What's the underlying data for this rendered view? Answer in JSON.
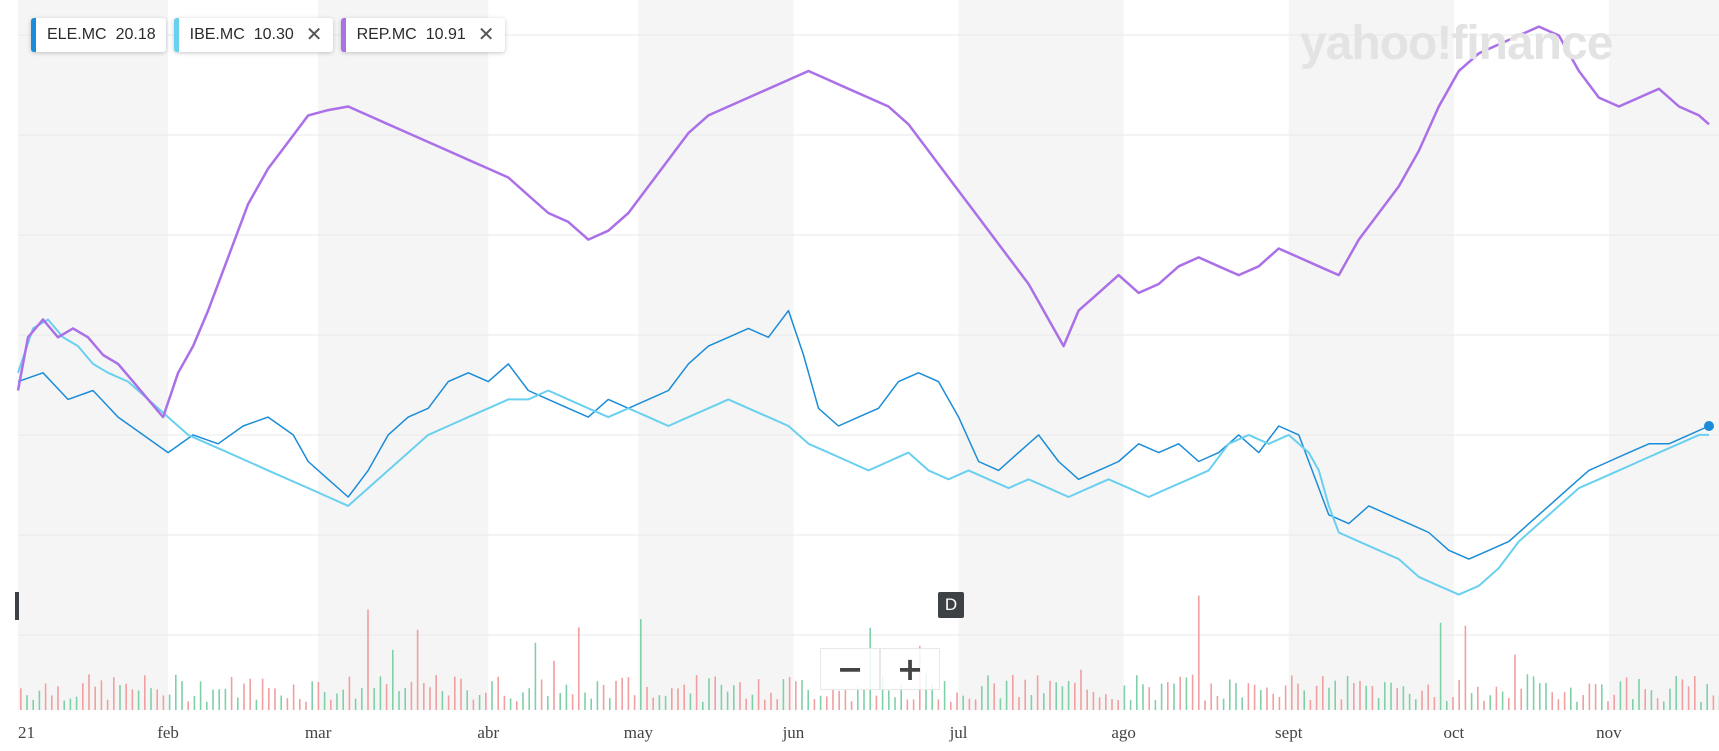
{
  "legend": [
    {
      "symbol": "ELE.MC",
      "value": "20.18",
      "color": "#1a8cd8",
      "closable": false
    },
    {
      "symbol": "IBE.MC",
      "value": "10.30",
      "color": "#6ad0f0",
      "closable": true
    },
    {
      "symbol": "REP.MC",
      "value": "10.91",
      "color": "#ab6fe8",
      "closable": true
    }
  ],
  "watermark": "yahoo!finance",
  "event_marker": "D",
  "zoom": {
    "minus": "−",
    "plus": "+"
  },
  "chart_data": {
    "type": "line",
    "xlabel": "",
    "ylabel": "",
    "x_ticks": [
      "21",
      "feb",
      "mar",
      "abr",
      "may",
      "jun",
      "jul",
      "ago",
      "sept",
      "oct",
      "nov"
    ],
    "x_tick_days": [
      0,
      30,
      60,
      94,
      124,
      155,
      188,
      221,
      254,
      287,
      318
    ],
    "x_range_days": [
      0,
      340
    ],
    "y_unit": "relative % change (scale not printed)",
    "y_range": [
      -18,
      22
    ],
    "series": [
      {
        "name": "ELE.MC",
        "color": "#1a8cd8",
        "stroke": 1.5,
        "points": [
          [
            0,
            0.5
          ],
          [
            5,
            1.0
          ],
          [
            10,
            -0.5
          ],
          [
            15,
            0.0
          ],
          [
            20,
            -1.5
          ],
          [
            25,
            -2.5
          ],
          [
            30,
            -3.5
          ],
          [
            35,
            -2.5
          ],
          [
            40,
            -3.0
          ],
          [
            45,
            -2.0
          ],
          [
            50,
            -1.5
          ],
          [
            55,
            -2.5
          ],
          [
            58,
            -4.0
          ],
          [
            62,
            -5.0
          ],
          [
            66,
            -6.0
          ],
          [
            70,
            -4.5
          ],
          [
            74,
            -2.5
          ],
          [
            78,
            -1.5
          ],
          [
            82,
            -1.0
          ],
          [
            86,
            0.5
          ],
          [
            90,
            1.0
          ],
          [
            94,
            0.5
          ],
          [
            98,
            1.5
          ],
          [
            102,
            0.0
          ],
          [
            106,
            -0.5
          ],
          [
            110,
            -1.0
          ],
          [
            114,
            -1.5
          ],
          [
            118,
            -0.5
          ],
          [
            122,
            -1.0
          ],
          [
            126,
            -0.5
          ],
          [
            130,
            0.0
          ],
          [
            134,
            1.5
          ],
          [
            138,
            2.5
          ],
          [
            142,
            3.0
          ],
          [
            146,
            3.5
          ],
          [
            150,
            3.0
          ],
          [
            154,
            4.5
          ],
          [
            157,
            2.0
          ],
          [
            160,
            -1.0
          ],
          [
            164,
            -2.0
          ],
          [
            168,
            -1.5
          ],
          [
            172,
            -1.0
          ],
          [
            176,
            0.5
          ],
          [
            180,
            1.0
          ],
          [
            184,
            0.5
          ],
          [
            188,
            -1.5
          ],
          [
            192,
            -4.0
          ],
          [
            196,
            -4.5
          ],
          [
            200,
            -3.5
          ],
          [
            204,
            -2.5
          ],
          [
            208,
            -4.0
          ],
          [
            212,
            -5.0
          ],
          [
            216,
            -4.5
          ],
          [
            220,
            -4.0
          ],
          [
            224,
            -3.0
          ],
          [
            228,
            -3.5
          ],
          [
            232,
            -3.0
          ],
          [
            236,
            -4.0
          ],
          [
            240,
            -3.5
          ],
          [
            244,
            -2.5
          ],
          [
            248,
            -3.5
          ],
          [
            252,
            -2.0
          ],
          [
            256,
            -2.5
          ],
          [
            258,
            -4.0
          ],
          [
            260,
            -5.5
          ],
          [
            262,
            -7.0
          ],
          [
            266,
            -7.5
          ],
          [
            270,
            -6.5
          ],
          [
            274,
            -7.0
          ],
          [
            278,
            -7.5
          ],
          [
            282,
            -8.0
          ],
          [
            286,
            -9.0
          ],
          [
            290,
            -9.5
          ],
          [
            294,
            -9.0
          ],
          [
            298,
            -8.5
          ],
          [
            302,
            -7.5
          ],
          [
            306,
            -6.5
          ],
          [
            310,
            -5.5
          ],
          [
            314,
            -4.5
          ],
          [
            318,
            -4.0
          ],
          [
            322,
            -3.5
          ],
          [
            326,
            -3.0
          ],
          [
            330,
            -3.0
          ],
          [
            334,
            -2.5
          ],
          [
            338,
            -2.0
          ]
        ]
      },
      {
        "name": "IBE.MC",
        "color": "#6ad0f0",
        "stroke": 2,
        "points": [
          [
            0,
            1.0
          ],
          [
            3,
            3.5
          ],
          [
            6,
            4.0
          ],
          [
            9,
            3.0
          ],
          [
            12,
            2.5
          ],
          [
            15,
            1.5
          ],
          [
            18,
            1.0
          ],
          [
            22,
            0.5
          ],
          [
            26,
            -0.5
          ],
          [
            30,
            -1.5
          ],
          [
            34,
            -2.5
          ],
          [
            38,
            -3.0
          ],
          [
            42,
            -3.5
          ],
          [
            46,
            -4.0
          ],
          [
            50,
            -4.5
          ],
          [
            54,
            -5.0
          ],
          [
            58,
            -5.5
          ],
          [
            62,
            -6.0
          ],
          [
            66,
            -6.5
          ],
          [
            70,
            -5.5
          ],
          [
            74,
            -4.5
          ],
          [
            78,
            -3.5
          ],
          [
            82,
            -2.5
          ],
          [
            86,
            -2.0
          ],
          [
            90,
            -1.5
          ],
          [
            94,
            -1.0
          ],
          [
            98,
            -0.5
          ],
          [
            102,
            -0.5
          ],
          [
            106,
            0.0
          ],
          [
            110,
            -0.5
          ],
          [
            114,
            -1.0
          ],
          [
            118,
            -1.5
          ],
          [
            122,
            -1.0
          ],
          [
            126,
            -1.5
          ],
          [
            130,
            -2.0
          ],
          [
            134,
            -1.5
          ],
          [
            138,
            -1.0
          ],
          [
            142,
            -0.5
          ],
          [
            146,
            -1.0
          ],
          [
            150,
            -1.5
          ],
          [
            154,
            -2.0
          ],
          [
            158,
            -3.0
          ],
          [
            162,
            -3.5
          ],
          [
            166,
            -4.0
          ],
          [
            170,
            -4.5
          ],
          [
            174,
            -4.0
          ],
          [
            178,
            -3.5
          ],
          [
            182,
            -4.5
          ],
          [
            186,
            -5.0
          ],
          [
            190,
            -4.5
          ],
          [
            194,
            -5.0
          ],
          [
            198,
            -5.5
          ],
          [
            202,
            -5.0
          ],
          [
            206,
            -5.5
          ],
          [
            210,
            -6.0
          ],
          [
            214,
            -5.5
          ],
          [
            218,
            -5.0
          ],
          [
            222,
            -5.5
          ],
          [
            226,
            -6.0
          ],
          [
            230,
            -5.5
          ],
          [
            234,
            -5.0
          ],
          [
            238,
            -4.5
          ],
          [
            242,
            -3.0
          ],
          [
            246,
            -2.5
          ],
          [
            250,
            -3.0
          ],
          [
            254,
            -2.5
          ],
          [
            258,
            -3.5
          ],
          [
            260,
            -4.5
          ],
          [
            262,
            -6.5
          ],
          [
            264,
            -8.0
          ],
          [
            268,
            -8.5
          ],
          [
            272,
            -9.0
          ],
          [
            276,
            -9.5
          ],
          [
            280,
            -10.5
          ],
          [
            284,
            -11.0
          ],
          [
            288,
            -11.5
          ],
          [
            292,
            -11.0
          ],
          [
            296,
            -10.0
          ],
          [
            300,
            -8.5
          ],
          [
            304,
            -7.5
          ],
          [
            308,
            -6.5
          ],
          [
            312,
            -5.5
          ],
          [
            316,
            -5.0
          ],
          [
            320,
            -4.5
          ],
          [
            324,
            -4.0
          ],
          [
            328,
            -3.5
          ],
          [
            332,
            -3.0
          ],
          [
            336,
            -2.5
          ],
          [
            338,
            -2.5
          ]
        ]
      },
      {
        "name": "REP.MC",
        "color": "#ab6fe8",
        "stroke": 2.5,
        "points": [
          [
            0,
            0.0
          ],
          [
            2,
            3.0
          ],
          [
            5,
            4.0
          ],
          [
            8,
            3.0
          ],
          [
            11,
            3.5
          ],
          [
            14,
            3.0
          ],
          [
            17,
            2.0
          ],
          [
            20,
            1.5
          ],
          [
            23,
            0.5
          ],
          [
            26,
            -0.5
          ],
          [
            29,
            -1.5
          ],
          [
            32,
            1.0
          ],
          [
            35,
            2.5
          ],
          [
            38,
            4.5
          ],
          [
            42,
            7.5
          ],
          [
            46,
            10.5
          ],
          [
            50,
            12.5
          ],
          [
            54,
            14.0
          ],
          [
            58,
            15.5
          ],
          [
            62,
            15.8
          ],
          [
            66,
            16.0
          ],
          [
            70,
            15.5
          ],
          [
            74,
            15.0
          ],
          [
            78,
            14.5
          ],
          [
            82,
            14.0
          ],
          [
            86,
            13.5
          ],
          [
            90,
            13.0
          ],
          [
            94,
            12.5
          ],
          [
            98,
            12.0
          ],
          [
            102,
            11.0
          ],
          [
            106,
            10.0
          ],
          [
            110,
            9.5
          ],
          [
            114,
            8.5
          ],
          [
            118,
            9.0
          ],
          [
            122,
            10.0
          ],
          [
            126,
            11.5
          ],
          [
            130,
            13.0
          ],
          [
            134,
            14.5
          ],
          [
            138,
            15.5
          ],
          [
            142,
            16.0
          ],
          [
            146,
            16.5
          ],
          [
            150,
            17.0
          ],
          [
            154,
            17.5
          ],
          [
            158,
            18.0
          ],
          [
            162,
            17.5
          ],
          [
            166,
            17.0
          ],
          [
            170,
            16.5
          ],
          [
            174,
            16.0
          ],
          [
            178,
            15.0
          ],
          [
            182,
            13.5
          ],
          [
            186,
            12.0
          ],
          [
            190,
            10.5
          ],
          [
            194,
            9.0
          ],
          [
            198,
            7.5
          ],
          [
            202,
            6.0
          ],
          [
            206,
            4.0
          ],
          [
            209,
            2.5
          ],
          [
            212,
            4.5
          ],
          [
            216,
            5.5
          ],
          [
            220,
            6.5
          ],
          [
            224,
            5.5
          ],
          [
            228,
            6.0
          ],
          [
            232,
            7.0
          ],
          [
            236,
            7.5
          ],
          [
            240,
            7.0
          ],
          [
            244,
            6.5
          ],
          [
            248,
            7.0
          ],
          [
            252,
            8.0
          ],
          [
            256,
            7.5
          ],
          [
            260,
            7.0
          ],
          [
            264,
            6.5
          ],
          [
            268,
            8.5
          ],
          [
            272,
            10.0
          ],
          [
            276,
            11.5
          ],
          [
            280,
            13.5
          ],
          [
            284,
            16.0
          ],
          [
            288,
            18.0
          ],
          [
            292,
            19.0
          ],
          [
            296,
            19.5
          ],
          [
            300,
            20.0
          ],
          [
            304,
            20.5
          ],
          [
            308,
            20.0
          ],
          [
            312,
            18.0
          ],
          [
            316,
            16.5
          ],
          [
            320,
            16.0
          ],
          [
            324,
            16.5
          ],
          [
            328,
            17.0
          ],
          [
            332,
            16.0
          ],
          [
            336,
            15.5
          ],
          [
            338,
            15.0
          ]
        ]
      }
    ]
  }
}
